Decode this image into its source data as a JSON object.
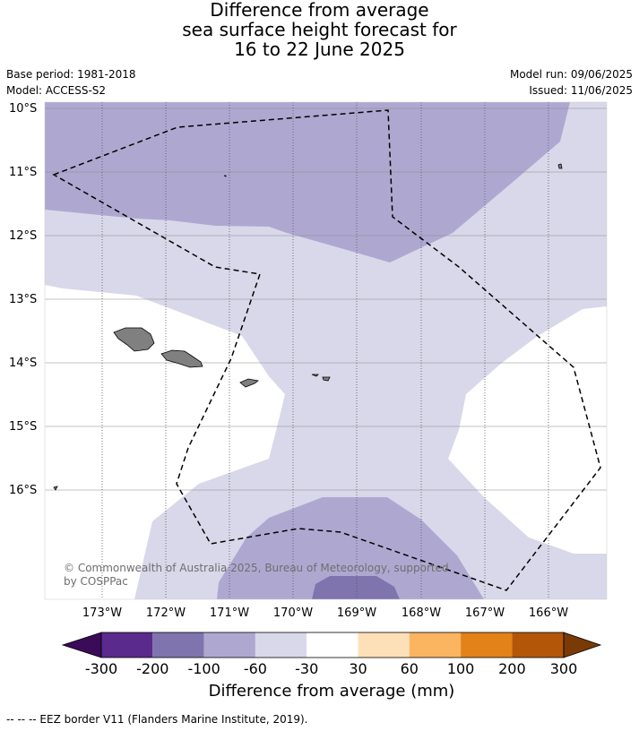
{
  "title": {
    "line1": "Difference from average",
    "line2": "sea surface height forecast for",
    "line3": "16 to 22 June 2025"
  },
  "meta_left": {
    "base_period": "Base period: 1981-2018",
    "model": "Model: ACCESS-S2"
  },
  "meta_right": {
    "model_run": "Model run: 09/06/2025",
    "issued": "Issued: 11/06/2025"
  },
  "map": {
    "lat_labels": [
      "10°S",
      "11°S",
      "12°S",
      "13°S",
      "14°S",
      "15°S",
      "16°S"
    ],
    "lon_labels": [
      "173°W",
      "172°W",
      "171°W",
      "170°W",
      "169°W",
      "168°W",
      "167°W",
      "166°W"
    ],
    "copyright_line1": "© Commonwealth of Australia 2025, Bureau of Meteorology, supported",
    "copyright_line2": "by COSPPac",
    "region_colors": {
      "minus_200_to_minus_100": "#7f74ae",
      "minus_100_to_minus_60": "#aea8d1",
      "minus_60_to_minus_30": "#d8d8ea",
      "minus_30_to_30": "#ffffff",
      "land": "#808080"
    }
  },
  "colorbar": {
    "tick_labels": [
      "-300",
      "-200",
      "-100",
      "-60",
      "-30",
      "30",
      "60",
      "100",
      "200",
      "300"
    ],
    "colors": [
      "#5a2a8d",
      "#7f74ae",
      "#aea8d1",
      "#d8d8ea",
      "#ffffff",
      "#fde0b8",
      "#fbb460",
      "#e28218",
      "#b45608"
    ],
    "under_color": "#3b0a59",
    "over_color": "#7a3a06",
    "label": "Difference from average (mm)"
  },
  "footnote": "--  --  -- EEZ border V11 (Flanders Marine Institute, 2019)."
}
